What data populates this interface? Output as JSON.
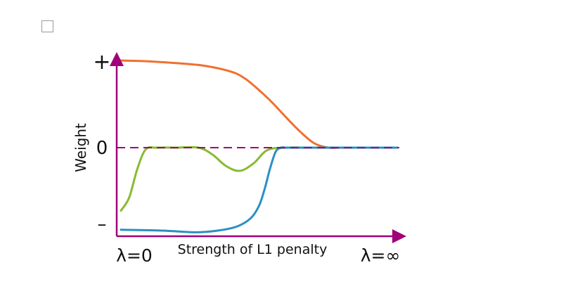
{
  "chart_data": {
    "type": "line",
    "xlabel": "Strength of L1 penalty",
    "ylabel": "Weight",
    "x_tick_labels": {
      "start": "λ=0",
      "end": "λ=∞"
    },
    "y_tick_labels": {
      "top": "+",
      "zero": "0",
      "bottom": "–"
    },
    "xlim": [
      0,
      1
    ],
    "ylim": [
      -1,
      1
    ],
    "zero_line": {
      "y": 0,
      "style": "dashed",
      "color": "#a0007a"
    },
    "axis_color": "#a0007a",
    "series": [
      {
        "color": "#f07030",
        "x": [
          0.0,
          0.1,
          0.2,
          0.3,
          0.4,
          0.45,
          0.5,
          0.55,
          0.6,
          0.65,
          0.7,
          0.75,
          0.8,
          1.0
        ],
        "y": [
          1.0,
          0.99,
          0.97,
          0.94,
          0.87,
          0.79,
          0.66,
          0.51,
          0.34,
          0.18,
          0.05,
          0.0,
          0.0,
          0.0
        ]
      },
      {
        "color": "#88bb30",
        "x": [
          0.0,
          0.03,
          0.06,
          0.09,
          0.13,
          0.2,
          0.28,
          0.33,
          0.38,
          0.43,
          0.48,
          0.53,
          0.6,
          0.7,
          1.0
        ],
        "y": [
          -0.76,
          -0.6,
          -0.25,
          -0.02,
          0.0,
          0.0,
          0.0,
          -0.08,
          -0.22,
          -0.28,
          -0.19,
          -0.03,
          0.0,
          0.0,
          0.0
        ]
      },
      {
        "color": "#2a8fc4",
        "x": [
          0.0,
          0.15,
          0.27,
          0.35,
          0.42,
          0.47,
          0.5,
          0.52,
          0.54,
          0.56,
          0.58,
          0.6,
          0.7,
          1.0
        ],
        "y": [
          -0.99,
          -1.0,
          -1.02,
          -1.0,
          -0.95,
          -0.85,
          -0.7,
          -0.5,
          -0.25,
          -0.05,
          0.0,
          0.0,
          0.0,
          0.0
        ]
      }
    ]
  }
}
